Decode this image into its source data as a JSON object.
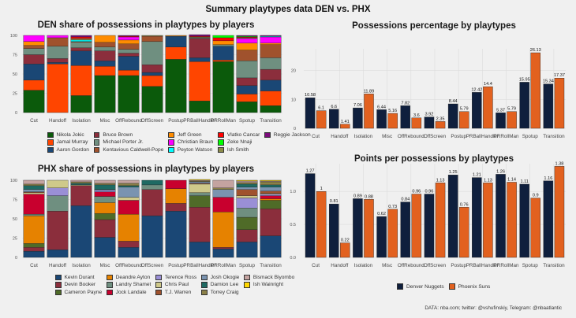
{
  "title": "Summary playtypes data DEN vs. PHX",
  "source": "DATA: nba.com; twitter: @vshufinskiy, Telegram: @nbaatlantic",
  "chart_data": [
    {
      "id": "den_share",
      "type": "bar",
      "stacked": true,
      "title": "DEN share of possessions in playtypes by players",
      "xlabel": "",
      "ylabel": "",
      "ylim": [
        0,
        100
      ],
      "yticks": [
        0,
        25,
        50,
        75,
        100
      ],
      "grid": true,
      "legend_position": "bottom",
      "categories": [
        "Cut",
        "Handoff",
        "Isolation",
        "Misc",
        "OffRebound",
        "OffScreen",
        "Postup",
        "PRBallHandler",
        "PRRollMan",
        "Spotup",
        "Transition"
      ],
      "series": [
        {
          "name": "Nikola Jokic",
          "color": "#0b5a0b",
          "values": [
            29,
            0,
            22,
            48,
            48,
            34,
            69,
            15,
            66,
            14,
            9
          ]
        },
        {
          "name": "Jamal Murray",
          "color": "#ff4500",
          "values": [
            13,
            63,
            39,
            12,
            7,
            14,
            16,
            51,
            2,
            10,
            19
          ]
        },
        {
          "name": "Aaron Gordon",
          "color": "#1a4775",
          "values": [
            21,
            2,
            19,
            7,
            18,
            4,
            14,
            5,
            18,
            11,
            14
          ]
        },
        {
          "name": "Bruce Brown",
          "color": "#8b2e3c",
          "values": [
            12,
            5,
            4,
            13,
            4,
            10,
            0,
            25,
            0,
            10,
            14
          ]
        },
        {
          "name": "Michael Porter Jr.",
          "color": "#6f8f80",
          "values": [
            8,
            16,
            7,
            5,
            5,
            30,
            0,
            1,
            2,
            22,
            15
          ]
        },
        {
          "name": "Kentavious Caldwell-Pope",
          "color": "#a0522d",
          "values": [
            4,
            11,
            1,
            6,
            7,
            7,
            0,
            0,
            0,
            14,
            17
          ]
        },
        {
          "name": "Jeff Green",
          "color": "#ff8c00",
          "values": [
            5,
            0,
            0,
            9,
            5,
            0,
            1,
            0,
            5,
            9,
            2
          ]
        },
        {
          "name": "Christian Braun",
          "color": "#ff00ff",
          "values": [
            8,
            3,
            0,
            0,
            4,
            0,
            0,
            0,
            0,
            6,
            8
          ]
        },
        {
          "name": "Peyton Watson",
          "color": "#00ffff",
          "values": [
            0,
            0,
            2,
            0,
            0,
            0,
            0,
            0,
            0,
            0,
            1
          ]
        },
        {
          "name": "Ish Smith",
          "color": "#8b8b4a",
          "values": [
            0,
            0,
            2,
            0,
            0,
            1,
            0,
            1,
            0,
            1,
            0
          ]
        },
        {
          "name": "Vlatko Cancar",
          "color": "#ff0000",
          "values": [
            0,
            0,
            2,
            0,
            1,
            0,
            0,
            1,
            4,
            1,
            0
          ]
        },
        {
          "name": "Zeke Nnaji",
          "color": "#00ff00",
          "values": [
            0,
            0,
            0,
            0,
            0,
            0,
            0,
            0,
            3,
            1,
            0
          ]
        },
        {
          "name": "Reggie Jackson",
          "color": "#7b0b7b",
          "values": [
            0,
            0,
            2,
            0,
            1,
            0,
            0,
            2,
            0,
            1,
            1
          ]
        }
      ]
    },
    {
      "id": "phx_share",
      "type": "bar",
      "stacked": true,
      "title": "PHX share of possessions in playtypes by players",
      "xlabel": "",
      "ylabel": "",
      "ylim": [
        0,
        100
      ],
      "yticks": [
        0,
        25,
        50,
        75,
        100
      ],
      "grid": true,
      "legend_position": "bottom",
      "categories": [
        "Cut",
        "Handoff",
        "Isolation",
        "Misc",
        "OffRebound",
        "OffScreen",
        "Postup",
        "PRBallHandler",
        "PRRollMan",
        "Spotup",
        "Transition"
      ],
      "series": [
        {
          "name": "Kevin Durant",
          "color": "#1a4775",
          "values": [
            8,
            10,
            67,
            26,
            13,
            54,
            60,
            20,
            11,
            20,
            28
          ]
        },
        {
          "name": "Devin Booker",
          "color": "#8b2e3c",
          "values": [
            5,
            50,
            26,
            23,
            8,
            34,
            10,
            45,
            2,
            16,
            35
          ]
        },
        {
          "name": "Cameron Payne",
          "color": "#4f6b28",
          "values": [
            5,
            0,
            0,
            8,
            0,
            0,
            0,
            15,
            0,
            16,
            11
          ]
        },
        {
          "name": "Deandre Ayton",
          "color": "#e68200",
          "values": [
            36,
            0,
            0,
            14,
            35,
            0,
            19,
            0,
            46,
            0,
            2
          ]
        },
        {
          "name": "Landry Shamet",
          "color": "#6f8f80",
          "values": [
            2,
            20,
            0,
            8,
            0,
            6,
            0,
            4,
            0,
            12,
            0
          ]
        },
        {
          "name": "Jock Landale",
          "color": "#c8002e",
          "values": [
            26,
            0,
            0,
            6,
            18,
            0,
            11,
            0,
            19,
            0,
            4
          ]
        },
        {
          "name": "Terence Ross",
          "color": "#9a8fd6",
          "values": [
            0,
            10,
            0,
            2,
            0,
            0,
            0,
            0,
            0,
            13,
            2
          ]
        },
        {
          "name": "Chris Paul",
          "color": "#cfc98a",
          "values": [
            2,
            10,
            1,
            0,
            4,
            0,
            0,
            11,
            0,
            3,
            1
          ]
        },
        {
          "name": "T.J. Warren",
          "color": "#a0522d",
          "values": [
            1,
            0,
            0,
            0,
            0,
            0,
            0,
            1,
            0,
            8,
            3
          ]
        },
        {
          "name": "Josh Okogie",
          "color": "#7a93b0",
          "values": [
            3,
            0,
            0,
            1,
            13,
            0,
            0,
            2,
            10,
            3,
            5
          ]
        },
        {
          "name": "Damion Lee",
          "color": "#1f6a63",
          "values": [
            5,
            0,
            2,
            6,
            2,
            6,
            0,
            0,
            0,
            4,
            3
          ]
        },
        {
          "name": "Torrey Craig",
          "color": "#8b8048",
          "values": [
            2,
            0,
            2,
            2,
            3,
            0,
            0,
            1,
            2,
            2,
            4
          ]
        },
        {
          "name": "Bismack Biyombo",
          "color": "#c4a3a0",
          "values": [
            5,
            0,
            2,
            4,
            4,
            0,
            0,
            1,
            10,
            2,
            1
          ]
        },
        {
          "name": "Ish Wainright",
          "color": "#ffd700",
          "values": [
            0,
            0,
            0,
            0,
            0,
            0,
            0,
            1,
            0,
            1,
            1
          ]
        }
      ]
    },
    {
      "id": "poss_pct",
      "type": "bar",
      "grouped": true,
      "title": "Possessions percentage by playtypes",
      "xlabel": "",
      "ylabel": "",
      "ylim": [
        0,
        27.5
      ],
      "yticks": [
        0,
        10,
        20
      ],
      "grid": true,
      "categories": [
        "Cut",
        "Handoff",
        "Isolation",
        "Misc",
        "OffRebound",
        "OffScreen",
        "Postup",
        "PRBallHandler",
        "PRRollMan",
        "Spotup",
        "Transition"
      ],
      "series": [
        {
          "name": "Denver Nuggets",
          "color": "#0f1f3d",
          "values": [
            10.58,
            6.6,
            7.06,
            6.44,
            7.82,
            3.92,
            8.44,
            12.42,
            5.37,
            15.95,
            15.34
          ],
          "labels": [
            "10.58",
            "6.6",
            "7.06",
            "6.44",
            "7.82",
            "3.92",
            "8.44",
            "12.42",
            "5.37",
            "15.95",
            "15.34"
          ]
        },
        {
          "name": "Phoenix Suns",
          "color": "#e2611f",
          "values": [
            6.1,
            1.41,
            11.89,
            5.16,
            3.6,
            2.35,
            5.79,
            14.4,
            5.79,
            26.13,
            17.37
          ],
          "labels": [
            "6.1",
            "1.41",
            "11.89",
            "5.16",
            "3.6",
            "2.35",
            "5.79",
            "14.4",
            "5.79",
            "26.13",
            "17.37"
          ]
        }
      ]
    },
    {
      "id": "ppp",
      "type": "bar",
      "grouped": true,
      "title": "Points per possessions by playtypes",
      "xlabel": "",
      "ylabel": "",
      "ylim": [
        0,
        1.42
      ],
      "yticks": [
        0.0,
        0.5,
        1.0
      ],
      "ytick_labels": [
        "0.0",
        "0.5",
        "1.0"
      ],
      "grid": true,
      "legend_position": "bottom",
      "categories": [
        "Cut",
        "Handoff",
        "Isolation",
        "Misc",
        "OffRebound",
        "OffScreen",
        "Postup",
        "PRBallHandler",
        "PRRollMan",
        "Spotup",
        "Transition"
      ],
      "series": [
        {
          "name": "Denver Nuggets",
          "color": "#0f1f3d",
          "values": [
            1.27,
            0.81,
            0.89,
            0.62,
            0.84,
            0.96,
            1.25,
            1.21,
            1.26,
            1.11,
            1.16
          ],
          "labels": [
            "1.27",
            "0.81",
            "0.89",
            "0.62",
            "0.84",
            "0.96",
            "1.25",
            "1.21",
            "1.26",
            "1.11",
            "1.16"
          ]
        },
        {
          "name": "Phoenix Suns",
          "color": "#e2611f",
          "values": [
            1.0,
            0.22,
            0.88,
            0.73,
            0.96,
            1.13,
            0.76,
            1.13,
            1.14,
            0.9,
            1.38
          ],
          "labels": [
            "1",
            "0.22",
            "0.88",
            "0.73",
            "0.96",
            "1.13",
            "0.76",
            "1.13",
            "1.14",
            "0.9",
            "1.38"
          ]
        }
      ]
    }
  ],
  "den_legend_columns": [
    [
      "Nikola Jokic",
      "Jamal Murray",
      "Aaron Gordon"
    ],
    [
      "Bruce Brown",
      "Michael Porter Jr.",
      "Kentavious Caldwell-Pope"
    ],
    [
      "Jeff Green",
      "Christian Braun",
      "Peyton Watson"
    ],
    [
      "Vlatko Cancar",
      "Zeke Nnaji",
      "Ish Smith"
    ],
    [
      "Reggie Jackson"
    ]
  ],
  "phx_legend_columns": [
    [
      "Kevin Durant",
      "Devin Booker",
      "Cameron Payne"
    ],
    [
      "Deandre Ayton",
      "Landry Shamet",
      "Jock Landale"
    ],
    [
      "Terence Ross",
      "Chris Paul",
      "T.J. Warren"
    ],
    [
      "Josh Okogie",
      "Damion Lee",
      "Torrey Craig"
    ],
    [
      "Bismack Biyombo",
      "Ish Wainright"
    ]
  ],
  "team_legend": [
    {
      "name": "Denver Nuggets",
      "color": "#0f1f3d"
    },
    {
      "name": "Phoenix Suns",
      "color": "#e2611f"
    }
  ]
}
